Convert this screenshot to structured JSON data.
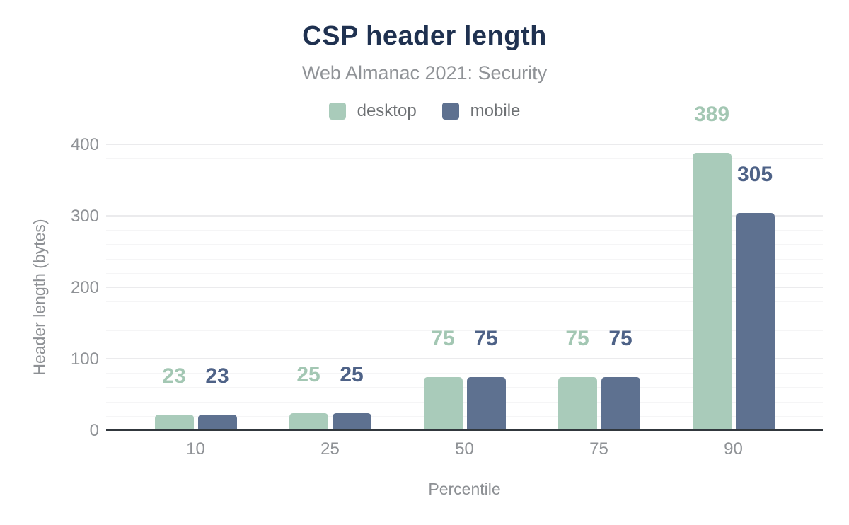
{
  "header": {
    "title": "CSP header length",
    "subtitle": "Web Almanac 2021: Security"
  },
  "chart_data": {
    "type": "bar",
    "title": "CSP header length",
    "subtitle": "Web Almanac 2021: Security",
    "categories": [
      "10",
      "25",
      "50",
      "75",
      "90"
    ],
    "series": [
      {
        "name": "desktop",
        "color": "#a9cbba",
        "label_color": "#a3c7b3",
        "values": [
          23,
          25,
          75,
          75,
          389
        ]
      },
      {
        "name": "mobile",
        "color": "#5e7190",
        "label_color": "#4e6287",
        "values": [
          23,
          25,
          75,
          75,
          305
        ]
      }
    ],
    "xlabel": "Percentile",
    "ylabel": "Header length (bytes)",
    "ylim": [
      0,
      400
    ],
    "y_ticks": [
      "0",
      "100",
      "200",
      "300",
      "400"
    ],
    "minor_grid_step": 20,
    "grid": "horizontal",
    "legend_position": "top",
    "value_labels": true,
    "colors": {
      "title": "#1f3150",
      "subtitle": "#909397",
      "axis_text": "#8f9296",
      "axis_line": "#31373d",
      "grid_minor": "#f5f5f6",
      "grid_major": "#ebebed"
    }
  }
}
